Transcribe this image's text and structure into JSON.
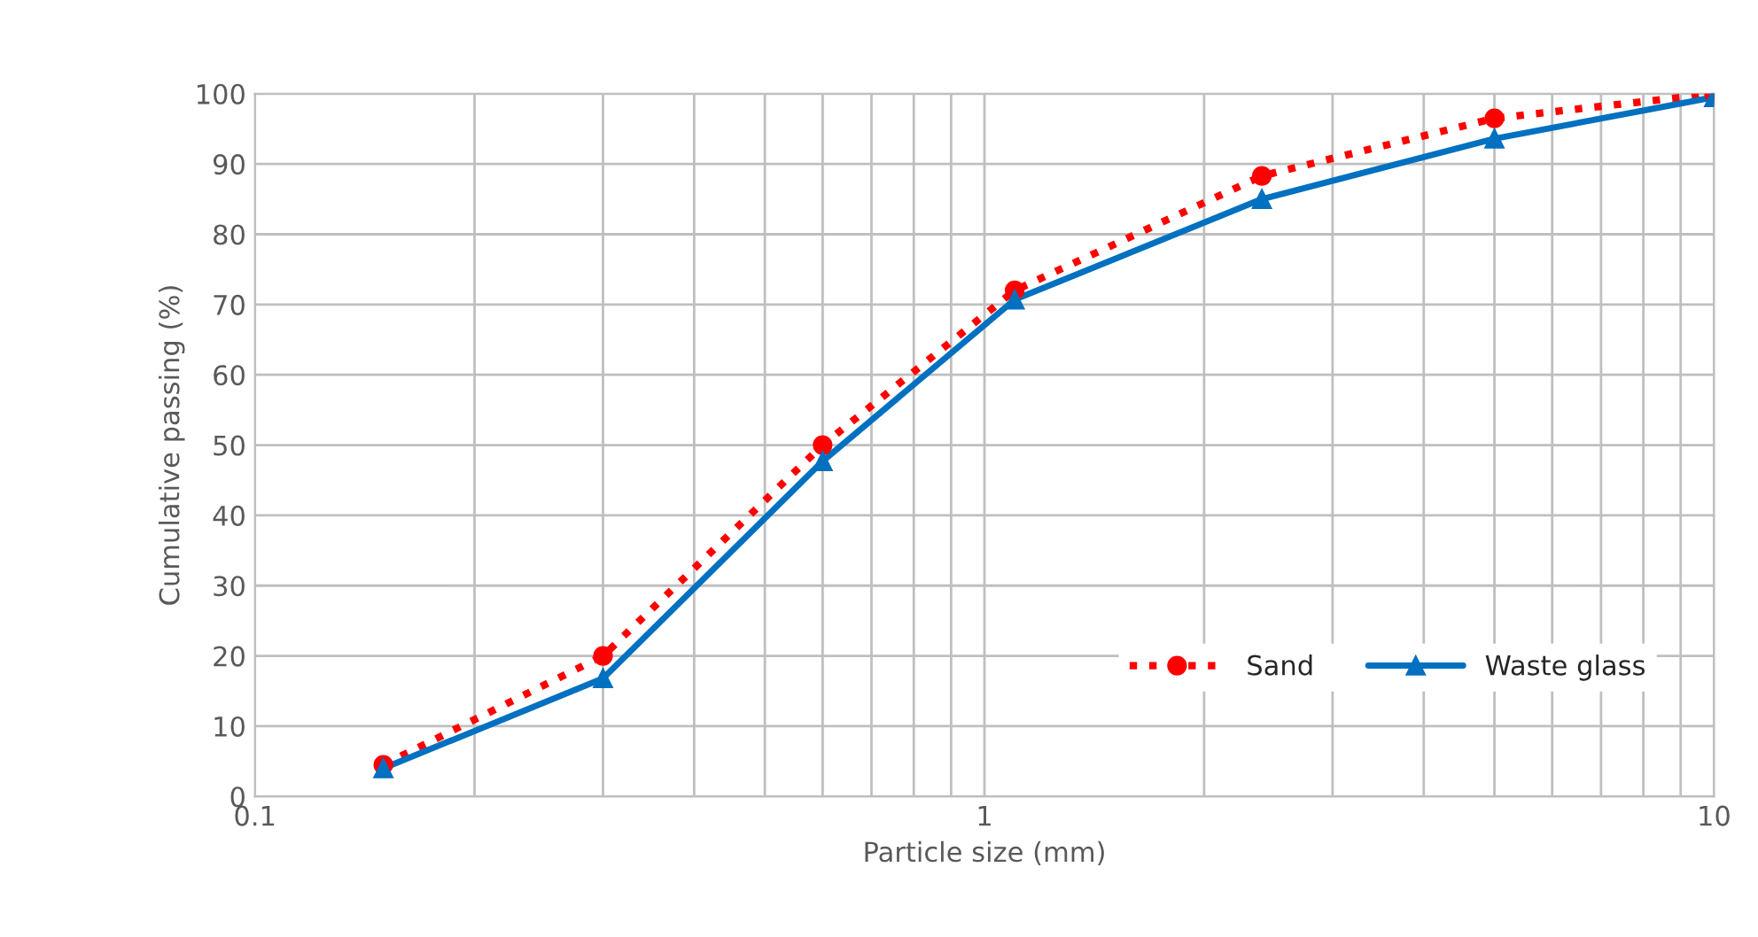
{
  "chart_data": {
    "type": "line",
    "xlabel": "Particle size (mm)",
    "ylabel": "Cumulative passing (%)",
    "x": [
      0.15,
      0.3,
      0.6,
      1.1,
      2.4,
      5,
      10
    ],
    "series": [
      {
        "name": "Sand",
        "color": "#ff0000",
        "values": [
          4.5,
          20,
          50,
          72,
          88.3,
          96.5,
          100
        ],
        "marker": "circle",
        "line_style": "dotted"
      },
      {
        "name": "Waste glass",
        "color": "#0070c0",
        "values": [
          4,
          16.8,
          47.7,
          70.7,
          85,
          93.6,
          99.5
        ],
        "marker": "triangle",
        "line_style": "solid"
      }
    ],
    "log": "x",
    "xlim": [
      0.1,
      10
    ],
    "xticks": [
      0.1,
      1,
      10
    ],
    "ylim": [
      0,
      100
    ],
    "yticks": [
      0,
      10,
      20,
      30,
      40,
      50,
      60,
      70,
      80,
      90,
      100
    ],
    "grid": true,
    "legend": "bottom right"
  }
}
